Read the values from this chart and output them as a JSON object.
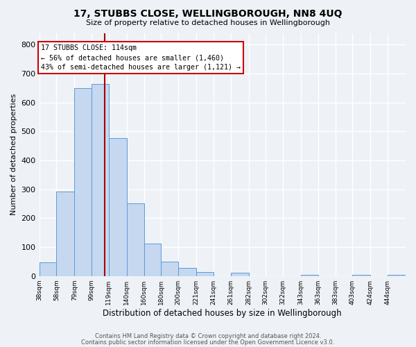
{
  "title": "17, STUBBS CLOSE, WELLINGBOROUGH, NN8 4UQ",
  "subtitle": "Size of property relative to detached houses in Wellingborough",
  "xlabel": "Distribution of detached houses by size in Wellingborough",
  "ylabel": "Number of detached properties",
  "footnote1": "Contains HM Land Registry data © Crown copyright and database right 2024.",
  "footnote2": "Contains public sector information licensed under the Open Government Licence v3.0.",
  "bin_labels": [
    "38sqm",
    "58sqm",
    "79sqm",
    "99sqm",
    "119sqm",
    "140sqm",
    "160sqm",
    "180sqm",
    "200sqm",
    "221sqm",
    "241sqm",
    "261sqm",
    "282sqm",
    "302sqm",
    "322sqm",
    "343sqm",
    "363sqm",
    "383sqm",
    "403sqm",
    "424sqm",
    "444sqm"
  ],
  "bar_heights": [
    48,
    293,
    650,
    663,
    477,
    250,
    113,
    49,
    28,
    14,
    0,
    11,
    0,
    0,
    0,
    5,
    0,
    0,
    5,
    0,
    5
  ],
  "bar_color": "#c5d8f0",
  "bar_edge_color": "#5b9bd5",
  "vline_x": 114,
  "vline_color": "#aa0000",
  "annotation_title": "17 STUBBS CLOSE: 114sqm",
  "annotation_line1": "← 56% of detached houses are smaller (1,460)",
  "annotation_line2": "43% of semi-detached houses are larger (1,121) →",
  "annotation_box_color": "white",
  "annotation_box_edge_color": "#cc0000",
  "ylim": [
    0,
    840
  ],
  "yticks": [
    0,
    100,
    200,
    300,
    400,
    500,
    600,
    700,
    800
  ],
  "background_color": "#eef2f7",
  "grid_color": "white"
}
